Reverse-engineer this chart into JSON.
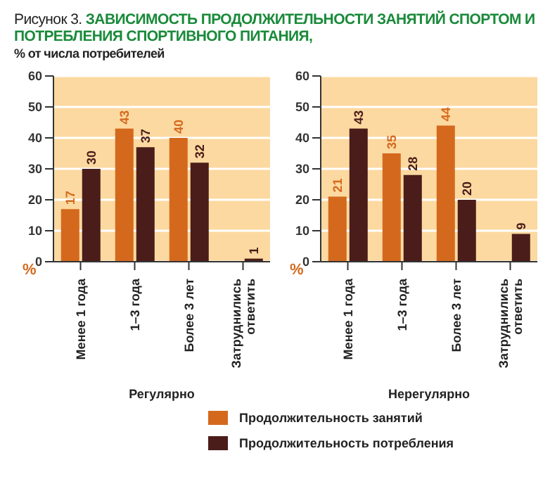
{
  "chart_data": [
    {
      "type": "bar",
      "title": "ЗАВИСИМОСТЬ ПРОДОЛЖИТЕЛЬНОСТИ ЗАНЯТИЙ СПОРТОМ И ПОТРЕБЛЕНИЯ СПОРТИВНОГО ПИТАНИЯ,",
      "subtitle": "% от числа потребителей",
      "annotations": [
        "Рисунок 3."
      ],
      "xlabel": "Регулярно",
      "ylabel": "%",
      "categories": [
        "Менее 1 года",
        "1–3 года",
        "Более 3 лет",
        "Затруднились ответить"
      ],
      "series": [
        {
          "name": "Продолжительность занятий",
          "color": "#d4691e",
          "values": [
            17,
            43,
            40,
            null
          ]
        },
        {
          "name": "Продолжительность потребления",
          "color": "#4a1d1a",
          "values": [
            30,
            37,
            32,
            1
          ]
        }
      ],
      "ylim": [
        0,
        60
      ],
      "yticks": [
        0,
        10,
        20,
        30,
        40,
        50,
        60
      ],
      "grid": "y",
      "data_labels": true,
      "legend": "bottom"
    },
    {
      "type": "bar",
      "xlabel": "Нерегулярно",
      "ylabel": "%",
      "categories": [
        "Менее 1 года",
        "1–3 года",
        "Более 3 лет",
        "Затруднились ответить"
      ],
      "series": [
        {
          "color": "#d4691e",
          "values": [
            21,
            35,
            44,
            null
          ]
        },
        {
          "color": "#4a1d1a",
          "values": [
            43,
            28,
            20,
            9
          ]
        }
      ],
      "ylim": [
        0,
        60
      ],
      "yticks": [
        0,
        10,
        20,
        30,
        40,
        50,
        60
      ],
      "grid": "y",
      "data_labels": true
    }
  ]
}
